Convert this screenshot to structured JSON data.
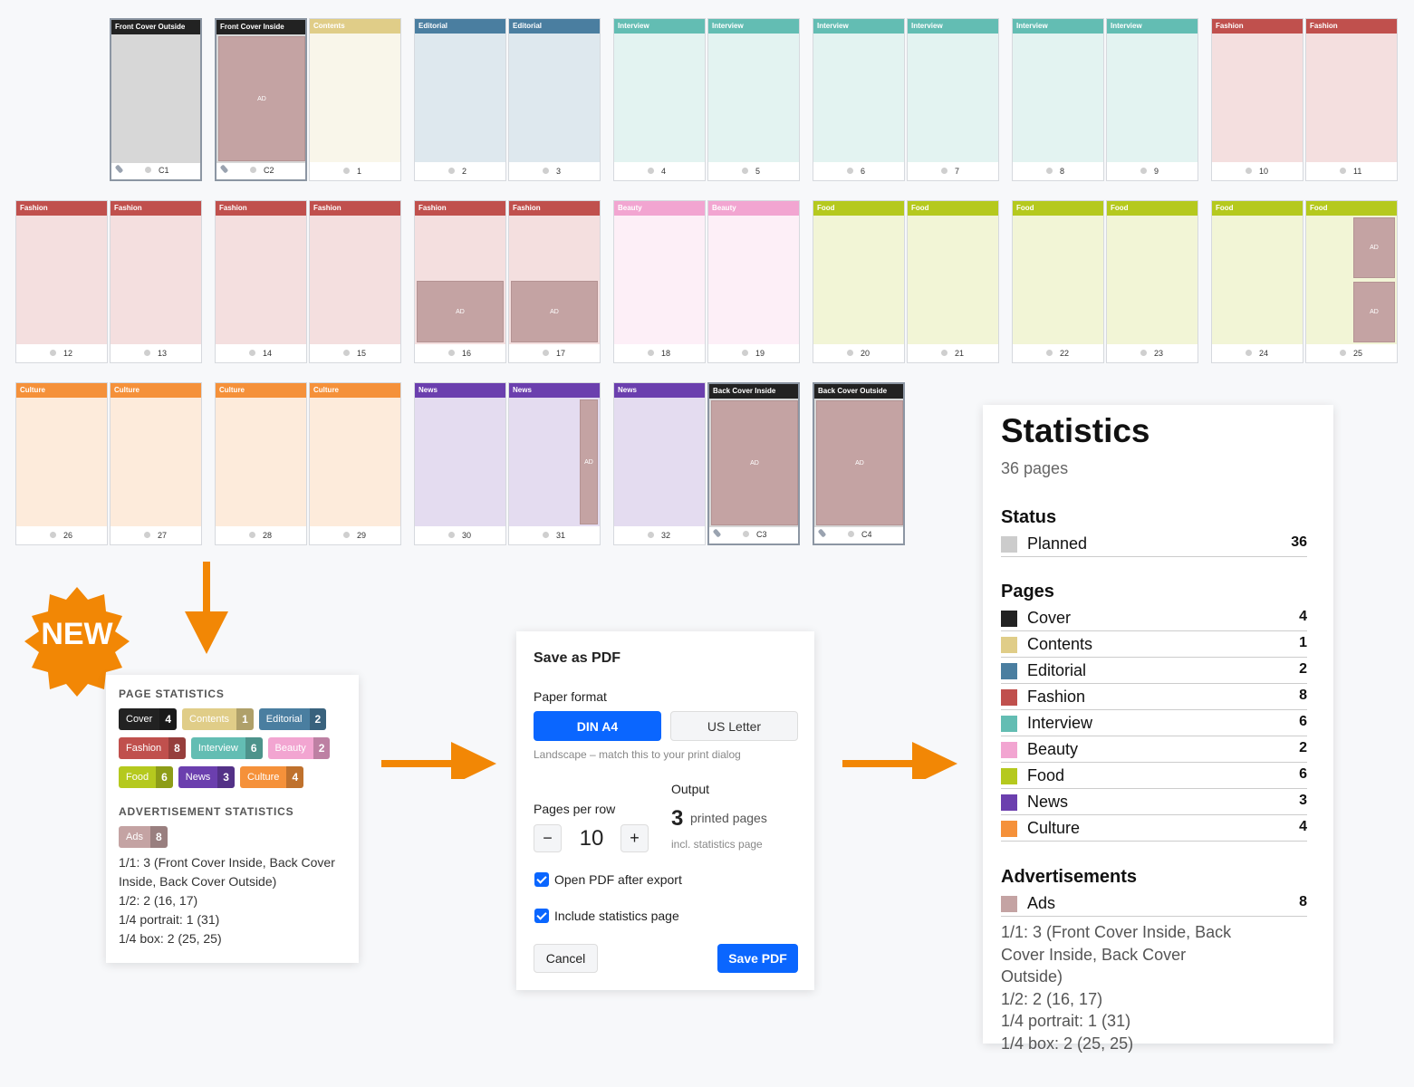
{
  "flatplan": {
    "ad_color": "#c4a3a3",
    "pages": [
      {
        "title": "Front Cover Outside",
        "number": "C1",
        "color": "#222222",
        "pinned": true,
        "ads": []
      },
      {
        "title": "Front Cover Inside",
        "number": "C2",
        "color": "#222222",
        "pinned": true,
        "ads": [
          {
            "label": "AD",
            "format": "1/1"
          }
        ]
      },
      {
        "title": "Contents",
        "number": "1",
        "color": "#e0cd88",
        "ads": []
      },
      {
        "title": "Editorial",
        "number": "2",
        "color": "#4a7ea0",
        "ads": []
      },
      {
        "title": "Editorial",
        "number": "3",
        "color": "#4a7ea0",
        "ads": []
      },
      {
        "title": "Interview",
        "number": "4",
        "color": "#63bdb3",
        "ads": []
      },
      {
        "title": "Interview",
        "number": "5",
        "color": "#63bdb3",
        "ads": []
      },
      {
        "title": "Interview",
        "number": "6",
        "color": "#63bdb3",
        "ads": []
      },
      {
        "title": "Interview",
        "number": "7",
        "color": "#63bdb3",
        "ads": []
      },
      {
        "title": "Interview",
        "number": "8",
        "color": "#63bdb3",
        "ads": []
      },
      {
        "title": "Interview",
        "number": "9",
        "color": "#63bdb3",
        "ads": []
      },
      {
        "title": "Fashion",
        "number": "10",
        "color": "#c0504d",
        "ads": []
      },
      {
        "title": "Fashion",
        "number": "11",
        "color": "#c0504d",
        "ads": []
      },
      {
        "title": "Fashion",
        "number": "12",
        "color": "#c0504d",
        "ads": []
      },
      {
        "title": "Fashion",
        "number": "13",
        "color": "#c0504d",
        "ads": []
      },
      {
        "title": "Fashion",
        "number": "14",
        "color": "#c0504d",
        "ads": []
      },
      {
        "title": "Fashion",
        "number": "15",
        "color": "#c0504d",
        "ads": []
      },
      {
        "title": "Fashion",
        "number": "16",
        "color": "#c0504d",
        "ads": [
          {
            "label": "AD",
            "format": "1/2"
          }
        ]
      },
      {
        "title": "Fashion",
        "number": "17",
        "color": "#c0504d",
        "ads": [
          {
            "label": "AD",
            "format": "1/2"
          }
        ]
      },
      {
        "title": "Beauty",
        "number": "18",
        "color": "#f2a5d1",
        "ads": []
      },
      {
        "title": "Beauty",
        "number": "19",
        "color": "#f2a5d1",
        "ads": []
      },
      {
        "title": "Food",
        "number": "20",
        "color": "#b5c91e",
        "ads": []
      },
      {
        "title": "Food",
        "number": "21",
        "color": "#b5c91e",
        "ads": []
      },
      {
        "title": "Food",
        "number": "22",
        "color": "#b5c91e",
        "ads": []
      },
      {
        "title": "Food",
        "number": "23",
        "color": "#b5c91e",
        "ads": []
      },
      {
        "title": "Food",
        "number": "24",
        "color": "#b5c91e",
        "ads": []
      },
      {
        "title": "Food",
        "number": "25",
        "color": "#b5c91e",
        "ads": [
          {
            "label": "AD",
            "format": "1/4 box"
          },
          {
            "label": "AD",
            "format": "1/4 box"
          }
        ]
      },
      {
        "title": "Culture",
        "number": "26",
        "color": "#f5913a",
        "ads": []
      },
      {
        "title": "Culture",
        "number": "27",
        "color": "#f5913a",
        "ads": []
      },
      {
        "title": "Culture",
        "number": "28",
        "color": "#f5913a",
        "ads": []
      },
      {
        "title": "Culture",
        "number": "29",
        "color": "#f5913a",
        "ads": []
      },
      {
        "title": "News",
        "number": "30",
        "color": "#6b3fae",
        "ads": []
      },
      {
        "title": "News",
        "number": "31",
        "color": "#6b3fae",
        "ads": [
          {
            "label": "AD",
            "format": "1/4 portrait"
          }
        ]
      },
      {
        "title": "News",
        "number": "32",
        "color": "#6b3fae",
        "ads": []
      },
      {
        "title": "Back Cover Inside",
        "number": "C3",
        "color": "#222222",
        "pinned": true,
        "ads": [
          {
            "label": "AD",
            "format": "1/1"
          }
        ]
      },
      {
        "title": "Back Cover Outside",
        "number": "C4",
        "color": "#222222",
        "pinned": true,
        "ads": [
          {
            "label": "AD",
            "format": "1/1"
          }
        ]
      }
    ]
  },
  "badge": "NEW",
  "page_statistics": {
    "title": "PAGE STATISTICS",
    "ads_title": "ADVERTISEMENT STATISTICS"
  },
  "sections": [
    {
      "name": "Cover",
      "count": 4,
      "color": "#222222"
    },
    {
      "name": "Contents",
      "count": 1,
      "color": "#e0cd88"
    },
    {
      "name": "Editorial",
      "count": 2,
      "color": "#4a7ea0"
    },
    {
      "name": "Fashion",
      "count": 8,
      "color": "#c0504d"
    },
    {
      "name": "Interview",
      "count": 6,
      "color": "#63bdb3"
    },
    {
      "name": "Beauty",
      "count": 2,
      "color": "#f2a5d1"
    },
    {
      "name": "Food",
      "count": 6,
      "color": "#b5c91e"
    },
    {
      "name": "News",
      "count": 3,
      "color": "#6b3fae"
    },
    {
      "name": "Culture",
      "count": 4,
      "color": "#f5913a"
    }
  ],
  "ads": {
    "name": "Ads",
    "count": 8,
    "color": "#c4a3a3",
    "lines": [
      "1/1: 3 (Front Cover Inside, Back Cover Inside, Back Cover Outside)",
      "1/2: 2 (16, 17)",
      "1/4 portrait: 1 (31)",
      "1/4 box: 2 (25, 25)"
    ]
  },
  "dialog": {
    "title": "Save as PDF",
    "paper_format_label": "Paper format",
    "formats": [
      {
        "label": "DIN A4",
        "selected": true
      },
      {
        "label": "US Letter",
        "selected": false
      }
    ],
    "hint": "Landscape – match this to your print dialog",
    "pages_per_row_label": "Pages per row",
    "minus": "−",
    "pages_per_row": 10,
    "plus": "+",
    "output_label": "Output",
    "output_count": 3,
    "output_unit": "printed pages",
    "output_note": "incl. statistics page",
    "options": [
      {
        "label": "Open PDF after export",
        "checked": true
      },
      {
        "label": "Include statistics page",
        "checked": true
      }
    ],
    "cancel": "Cancel",
    "save": "Save PDF"
  },
  "statistics": {
    "title": "Statistics",
    "subtitle": "36 pages",
    "status_title": "Status",
    "status": [
      {
        "name": "Planned",
        "count": 36,
        "color": "#cccccc"
      }
    ],
    "pages_title": "Pages",
    "advertisements_title": "Advertisements"
  }
}
